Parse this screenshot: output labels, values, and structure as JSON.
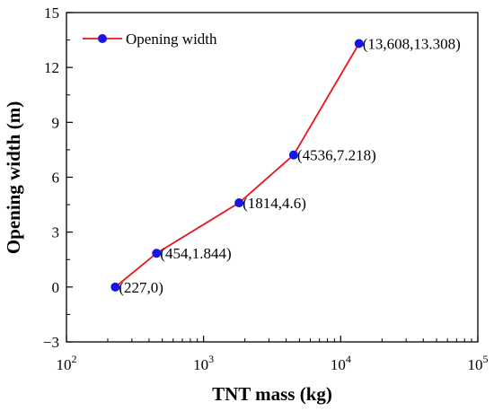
{
  "chart_data": {
    "type": "line",
    "xlabel": "TNT mass (kg)",
    "ylabel": "Opening width (m)",
    "x_scale": "log",
    "xlim": [
      100,
      100000
    ],
    "ylim": [
      -3,
      15
    ],
    "x_ticks": [
      {
        "value": 100,
        "base": "10",
        "exp": "2"
      },
      {
        "value": 1000,
        "base": "10",
        "exp": "3"
      },
      {
        "value": 10000,
        "base": "10",
        "exp": "4"
      },
      {
        "value": 100000,
        "base": "10",
        "exp": "5"
      }
    ],
    "y_ticks": [
      {
        "value": -3,
        "label": "−3"
      },
      {
        "value": 0,
        "label": "0"
      },
      {
        "value": 3,
        "label": "3"
      },
      {
        "value": 6,
        "label": "6"
      },
      {
        "value": 9,
        "label": "9"
      },
      {
        "value": 12,
        "label": "12"
      },
      {
        "value": 15,
        "label": "15"
      }
    ],
    "grid": false,
    "legend_position": "top-left",
    "series": [
      {
        "name": "Opening width",
        "line_color": "#e8141b",
        "marker_color": "#1515e6",
        "points": [
          {
            "x": 227,
            "y": 0,
            "label": "(227,0)"
          },
          {
            "x": 454,
            "y": 1.844,
            "label": "(454,1.844)"
          },
          {
            "x": 1814,
            "y": 4.6,
            "label": "(1814,4.6)"
          },
          {
            "x": 4536,
            "y": 7.218,
            "label": "(4536,7.218)"
          },
          {
            "x": 13608,
            "y": 13.308,
            "label": "(13,608,13.308)"
          }
        ]
      }
    ]
  }
}
